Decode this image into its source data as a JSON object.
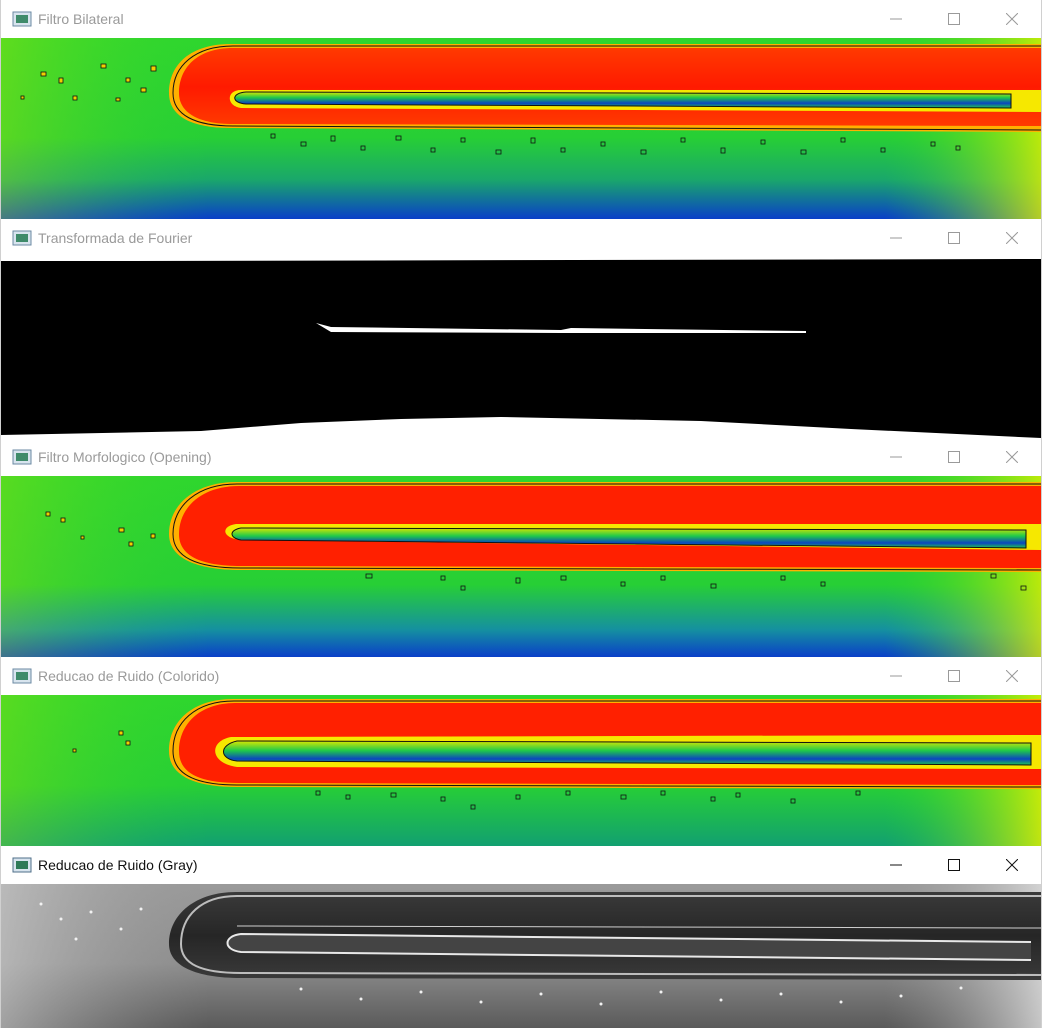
{
  "windows": [
    {
      "title": "Filtro Bilateral",
      "active": false,
      "view": "heatmap-contours"
    },
    {
      "title": "Transformada de Fourier",
      "active": false,
      "view": "binary-mask"
    },
    {
      "title": "Filtro Morfologico (Opening)",
      "active": false,
      "view": "heatmap-contours"
    },
    {
      "title": "Reducao de Ruido (Colorido)",
      "active": false,
      "view": "heatmap-contours"
    },
    {
      "title": "Reducao de Ruido (Gray)",
      "active": true,
      "view": "grayscale"
    }
  ],
  "icons": {
    "app": "opencv-window-icon",
    "minimize": "minimize-icon",
    "maximize": "maximize-icon",
    "close": "close-icon"
  },
  "colors": {
    "hot": "#ff2a00",
    "warm": "#ffd400",
    "mid": "#22d12a",
    "cool": "#0a3fc8",
    "mask_fg": "#ffffff",
    "mask_bg": "#000000"
  }
}
